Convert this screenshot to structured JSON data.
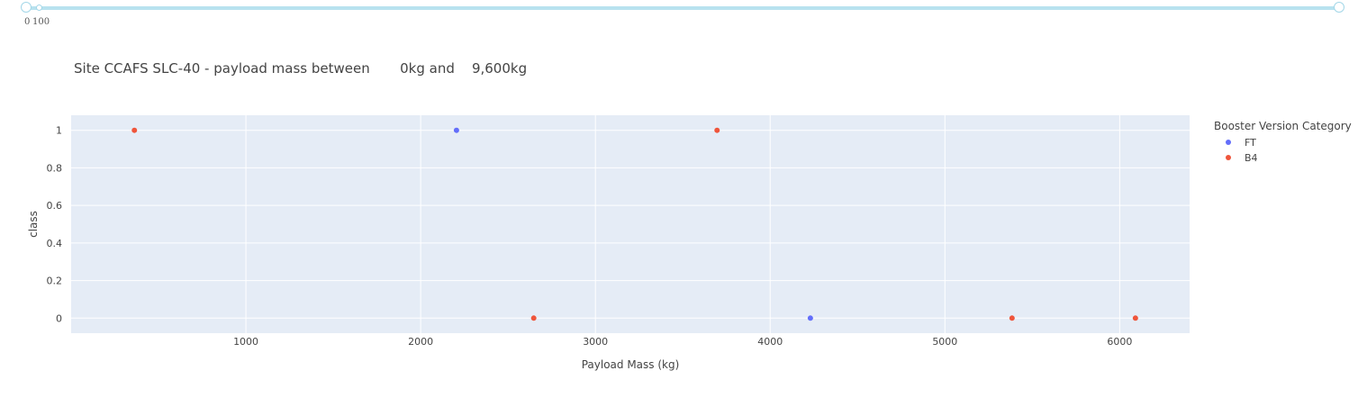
{
  "range_slider": {
    "min_label": "0",
    "max_label": "100",
    "accent": "#a3d7e8"
  },
  "title_parts": {
    "site": "Site CCAFS SLC-40 - payload mass between",
    "low": "0kg and",
    "high": "9,600kg"
  },
  "chart_data": {
    "type": "scatter",
    "xlabel": "Payload Mass (kg)",
    "ylabel": "class",
    "xlim": [
      0,
      6400
    ],
    "ylim": [
      -0.08,
      1.08
    ],
    "xticks": [
      1000,
      2000,
      3000,
      4000,
      5000,
      6000
    ],
    "xtick_labels": [
      "1000",
      "2000",
      "3000",
      "4000",
      "5000",
      "6000"
    ],
    "yticks": [
      0,
      0.2,
      0.4,
      0.6,
      0.8,
      1
    ],
    "ytick_labels": [
      "0",
      "0.2",
      "0.4",
      "0.6",
      "0.8",
      "1"
    ],
    "grid": true,
    "legend": {
      "title": "Booster Version Category",
      "placement": "right"
    },
    "series": [
      {
        "name": "FT",
        "color": "#636efa",
        "points": [
          {
            "x": 2205,
            "y": 1
          },
          {
            "x": 4230,
            "y": 0
          }
        ]
      },
      {
        "name": "B4",
        "color": "#ef553b",
        "points": [
          {
            "x": 362,
            "y": 1
          },
          {
            "x": 2647,
            "y": 0
          },
          {
            "x": 3696,
            "y": 1
          },
          {
            "x": 5384,
            "y": 0
          },
          {
            "x": 6090,
            "y": 0
          }
        ]
      }
    ]
  }
}
